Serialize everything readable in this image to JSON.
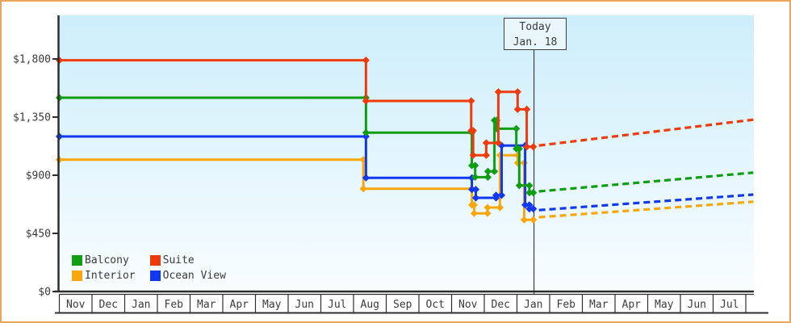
{
  "chart_data": {
    "type": "line",
    "today_annotation": {
      "line1": "Today",
      "line2": "Jan. 18",
      "x_month": 14.52
    },
    "x_axis": {
      "months": [
        "Nov",
        "Dec",
        "Jan",
        "Feb",
        "Mar",
        "Apr",
        "May",
        "Jun",
        "Jul",
        "Aug",
        "Sep",
        "Oct",
        "Nov",
        "Dec",
        "Jan",
        "Feb",
        "Mar",
        "Apr",
        "May",
        "Jun",
        "Jul"
      ]
    },
    "y_axis": {
      "tick_values": [
        0,
        450,
        900,
        1350,
        1800
      ],
      "tick_labels": [
        "$0",
        "$450",
        "$900",
        "$1,350",
        "$1,800"
      ]
    },
    "series": [
      {
        "name": "Interior",
        "color": "#f9a70b",
        "solid": [
          [
            0,
            1020
          ],
          [
            9.3,
            1020
          ],
          [
            9.3,
            795
          ],
          [
            12.62,
            795
          ],
          [
            12.62,
            670
          ],
          [
            12.69,
            670
          ],
          [
            12.69,
            605
          ],
          [
            13.1,
            605
          ],
          [
            13.1,
            650
          ],
          [
            13.48,
            650
          ],
          [
            13.48,
            1055
          ],
          [
            14.02,
            1055
          ],
          [
            14.02,
            995
          ],
          [
            14.22,
            995
          ],
          [
            14.22,
            555
          ],
          [
            14.5,
            555
          ]
        ],
        "forecast": [
          [
            14.67,
            575
          ],
          [
            21.23,
            695
          ]
        ]
      },
      {
        "name": "Ocean View",
        "color": "#1238ef",
        "solid": [
          [
            0,
            1200
          ],
          [
            9.38,
            1200
          ],
          [
            9.38,
            880
          ],
          [
            12.62,
            880
          ],
          [
            12.62,
            790
          ],
          [
            12.74,
            790
          ],
          [
            12.74,
            725
          ],
          [
            13.36,
            725
          ],
          [
            13.36,
            745
          ],
          [
            13.53,
            745
          ],
          [
            13.53,
            1130
          ],
          [
            14.25,
            1130
          ],
          [
            14.25,
            670
          ],
          [
            14.38,
            670
          ],
          [
            14.38,
            640
          ],
          [
            14.5,
            640
          ]
        ],
        "forecast": [
          [
            14.67,
            630
          ],
          [
            21.23,
            750
          ]
        ]
      },
      {
        "name": "Balcony",
        "color": "#0f9d12",
        "solid": [
          [
            0,
            1500
          ],
          [
            9.38,
            1500
          ],
          [
            9.38,
            1230
          ],
          [
            12.62,
            1230
          ],
          [
            12.62,
            975
          ],
          [
            12.72,
            975
          ],
          [
            12.72,
            885
          ],
          [
            13.11,
            885
          ],
          [
            13.11,
            930
          ],
          [
            13.31,
            930
          ],
          [
            13.31,
            1325
          ],
          [
            13.38,
            1325
          ],
          [
            13.38,
            1260
          ],
          [
            13.98,
            1260
          ],
          [
            13.98,
            1105
          ],
          [
            14.07,
            1105
          ],
          [
            14.07,
            820
          ],
          [
            14.38,
            820
          ],
          [
            14.38,
            765
          ],
          [
            14.5,
            765
          ]
        ],
        "forecast": [
          [
            14.67,
            775
          ],
          [
            21.23,
            920
          ]
        ]
      },
      {
        "name": "Suite",
        "color": "#ef3b0b",
        "solid": [
          [
            0,
            1790
          ],
          [
            9.38,
            1790
          ],
          [
            9.38,
            1475
          ],
          [
            12.6,
            1475
          ],
          [
            12.6,
            1245
          ],
          [
            12.66,
            1245
          ],
          [
            12.66,
            1055
          ],
          [
            13.06,
            1055
          ],
          [
            13.06,
            1150
          ],
          [
            13.43,
            1150
          ],
          [
            13.43,
            1545
          ],
          [
            14.02,
            1545
          ],
          [
            14.02,
            1410
          ],
          [
            14.3,
            1410
          ],
          [
            14.3,
            1120
          ],
          [
            14.5,
            1120
          ]
        ],
        "forecast": [
          [
            14.67,
            1130
          ],
          [
            21.23,
            1330
          ]
        ]
      }
    ],
    "legend": {
      "items": [
        {
          "label": "Balcony",
          "series_index": 2
        },
        {
          "label": "Suite",
          "series_index": 3
        },
        {
          "label": "Interior",
          "series_index": 0
        },
        {
          "label": "Ocean View",
          "series_index": 1
        }
      ]
    },
    "colors": {
      "plot_bg_top": "#cdeefb",
      "plot_bg_bottom": "#f8fdff",
      "axis": "#2e2e2e",
      "text": "#3b3b3b",
      "frame_border": "#eba55e"
    }
  }
}
